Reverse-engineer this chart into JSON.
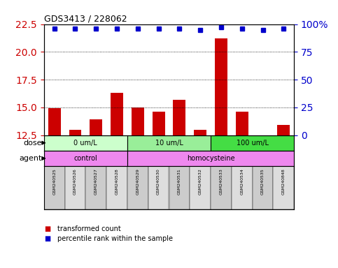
{
  "title": "GDS3413 / 228062",
  "samples": [
    "GSM240525",
    "GSM240526",
    "GSM240527",
    "GSM240528",
    "GSM240529",
    "GSM240530",
    "GSM240531",
    "GSM240532",
    "GSM240533",
    "GSM240534",
    "GSM240535",
    "GSM240848"
  ],
  "transformed_count": [
    14.9,
    13.0,
    13.9,
    16.3,
    15.0,
    14.6,
    15.7,
    13.0,
    21.2,
    14.6,
    12.5,
    13.4
  ],
  "percentile_rank": [
    96,
    96,
    96,
    96,
    96,
    96,
    96,
    95,
    97,
    96,
    95,
    96
  ],
  "bar_color": "#cc0000",
  "dot_color": "#0000cc",
  "ylim_left": [
    12.5,
    22.5
  ],
  "ylim_right": [
    0,
    100
  ],
  "yticks_left": [
    12.5,
    15.0,
    17.5,
    20.0,
    22.5
  ],
  "yticks_right": [
    0,
    25,
    50,
    75,
    100
  ],
  "ytick_labels_right": [
    "0",
    "25",
    "50",
    "75",
    "100%"
  ],
  "dose_groups": [
    {
      "label": "0 um/L",
      "start": 0,
      "end": 4,
      "color": "#ccffcc"
    },
    {
      "label": "10 um/L",
      "start": 4,
      "end": 8,
      "color": "#99ee99"
    },
    {
      "label": "100 um/L",
      "start": 8,
      "end": 12,
      "color": "#44dd44"
    }
  ],
  "agent_groups": [
    {
      "label": "control",
      "start": 0,
      "end": 4,
      "color": "#ee88ee"
    },
    {
      "label": "homocysteine",
      "start": 4,
      "end": 12,
      "color": "#ee88ee"
    }
  ],
  "legend_items": [
    {
      "color": "#cc0000",
      "label": "transformed count"
    },
    {
      "color": "#0000cc",
      "label": "percentile rank within the sample"
    }
  ],
  "dose_label": "dose",
  "agent_label": "agent",
  "background_color": "#ffffff",
  "plot_bg_color": "#ffffff",
  "grid_color": "#000000",
  "tick_color_left": "#cc0000",
  "tick_color_right": "#0000cc",
  "n_samples": 12,
  "sample_col_colors": [
    "#cccccc",
    "#dddddd"
  ]
}
